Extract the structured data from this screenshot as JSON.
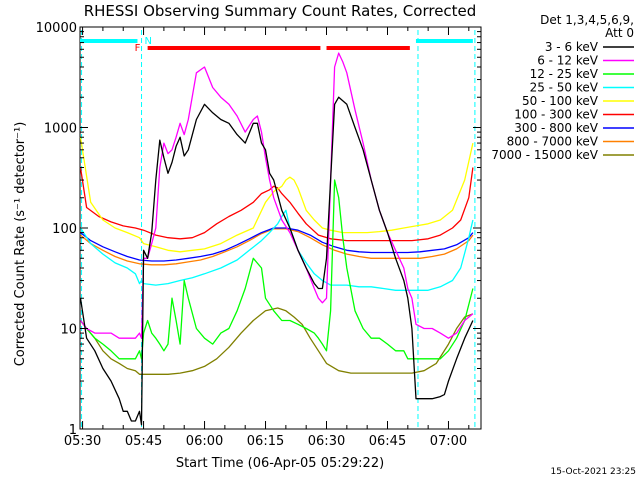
{
  "chart_data": {
    "type": "line",
    "title": "RHESSI Observing Summary Count Rates, Corrected",
    "xlabel": "Start Time (06-Apr-05 05:29:22)",
    "ylabel": "Corrected Count Rate (s⁻¹ detector⁻¹)",
    "y_scale": "log",
    "ylim": [
      1,
      10000
    ],
    "xlim": [
      "05:29:22",
      "07:08"
    ],
    "x_ticks": [
      "05:30",
      "05:45",
      "06:00",
      "06:15",
      "06:30",
      "06:45",
      "07:00"
    ],
    "y_ticks": [
      "1",
      "10",
      "100",
      "1000",
      "10000"
    ],
    "legend_header": [
      "Det 1,3,4,5,6,9,",
      "Att 0"
    ],
    "legend_position": "right",
    "footer_date": "15-Oct-2021 23:25",
    "flags": {
      "night_label": "N",
      "flare_label": "F",
      "night_color": "#00ffff",
      "flare_color": "#ff0000",
      "night_spans": [
        [
          "05:29:22",
          "05:43:30"
        ],
        [
          "06:52",
          "07:06"
        ]
      ],
      "flare_spans": [
        [
          "05:46",
          "06:28.5"
        ],
        [
          "06:30",
          "06:50.5"
        ]
      ],
      "night_boundaries": [
        "05:29:45",
        "05:44.5",
        "06:52.5",
        "07:06.5"
      ]
    },
    "series": [
      {
        "name": "3 - 6 keV",
        "color": "#000000",
        "x": [
          "05:29:30",
          "05:31",
          "05:33",
          "05:35",
          "05:37",
          "05:39",
          "05:40",
          "05:41",
          "05:42",
          "05:43",
          "05:44",
          "05:44.5",
          "05:45",
          "05:46",
          "05:47",
          "05:48",
          "05:49",
          "05:50",
          "05:51",
          "05:52",
          "05:53",
          "05:54",
          "05:55",
          "05:56",
          "05:58",
          "06:00",
          "06:02",
          "06:04",
          "06:06",
          "06:08",
          "06:10",
          "06:12",
          "06:13",
          "06:14",
          "06:15",
          "06:16",
          "06:17",
          "06:19",
          "06:21",
          "06:23",
          "06:25",
          "06:27",
          "06:28",
          "06:29",
          "06:30",
          "06:31",
          "06:32",
          "06:33",
          "06:35",
          "06:37",
          "06:39",
          "06:41",
          "06:43",
          "06:45",
          "06:47",
          "06:49",
          "06:50",
          "06:51",
          "06:52",
          "06:54",
          "06:56",
          "06:58",
          "06:59",
          "07:00",
          "07:02",
          "07:04",
          "07:06"
        ],
        "values": [
          20,
          8,
          6,
          4,
          3,
          2,
          1.5,
          1.5,
          1.2,
          1.2,
          1.5,
          1.1,
          60,
          50,
          90,
          300,
          750,
          500,
          350,
          450,
          650,
          800,
          520,
          600,
          1200,
          1700,
          1400,
          1200,
          1100,
          850,
          700,
          1100,
          1100,
          700,
          600,
          350,
          300,
          150,
          100,
          60,
          40,
          28,
          25,
          25,
          50,
          300,
          1700,
          2000,
          1700,
          1000,
          600,
          300,
          150,
          90,
          50,
          30,
          20,
          10,
          2,
          2,
          2,
          2.1,
          2.2,
          3,
          5,
          8,
          12
        ]
      },
      {
        "name": "6 - 12 keV",
        "color": "#ff00ff",
        "x": [
          "05:29:30",
          "05:31",
          "05:33",
          "05:35",
          "05:37",
          "05:39",
          "05:41",
          "05:43",
          "05:44",
          "05:44.5",
          "05:45",
          "05:46",
          "05:47",
          "05:48",
          "05:49",
          "05:50",
          "05:51",
          "05:52",
          "05:53",
          "05:54",
          "05:55",
          "05:56",
          "05:58",
          "06:00",
          "06:02",
          "06:04",
          "06:06",
          "06:08",
          "06:10",
          "06:12",
          "06:13",
          "06:14",
          "06:15",
          "06:16",
          "06:17",
          "06:19",
          "06:21",
          "06:23",
          "06:25",
          "06:27",
          "06:28",
          "06:29",
          "06:30",
          "06:31",
          "06:32",
          "06:33",
          "06:34",
          "06:35",
          "06:37",
          "06:39",
          "06:41",
          "06:43",
          "06:45",
          "06:47",
          "06:49",
          "06:50",
          "06:51",
          "06:52",
          "06:54",
          "06:56",
          "06:58",
          "07:00",
          "07:02",
          "07:04",
          "07:06"
        ],
        "values": [
          12,
          10,
          9,
          9,
          9,
          8,
          8,
          8,
          9,
          8,
          50,
          50,
          70,
          100,
          400,
          700,
          550,
          600,
          800,
          1100,
          850,
          1200,
          3500,
          4000,
          2500,
          2000,
          1700,
          1300,
          900,
          1200,
          1300,
          900,
          500,
          300,
          200,
          120,
          90,
          60,
          40,
          25,
          20,
          18,
          20,
          300,
          4000,
          5500,
          4500,
          3500,
          1500,
          700,
          300,
          150,
          90,
          60,
          40,
          25,
          20,
          11,
          10,
          10,
          9,
          8,
          9,
          12,
          14
        ]
      },
      {
        "name": "12 - 25 keV",
        "color": "#00ff00",
        "x": [
          "05:29:30",
          "05:31",
          "05:33",
          "05:35",
          "05:37",
          "05:39",
          "05:41",
          "05:43",
          "05:44",
          "05:44.5",
          "05:45",
          "05:46",
          "05:47",
          "05:48",
          "05:49",
          "05:50",
          "05:51",
          "05:52",
          "05:53",
          "05:54",
          "05:55",
          "05:56",
          "05:58",
          "06:00",
          "06:02",
          "06:04",
          "06:06",
          "06:08",
          "06:10",
          "06:12",
          "06:14",
          "06:15",
          "06:17",
          "06:19",
          "06:21",
          "06:23",
          "06:25",
          "06:27",
          "06:28",
          "06:29",
          "06:30",
          "06:31",
          "06:32",
          "06:33",
          "06:34",
          "06:35",
          "06:37",
          "06:39",
          "06:41",
          "06:43",
          "06:45",
          "06:47",
          "06:49",
          "06:50",
          "06:51",
          "06:52",
          "06:54",
          "06:56",
          "06:58",
          "07:00",
          "07:02",
          "07:04",
          "07:06"
        ],
        "values": [
          12,
          10,
          8,
          7,
          6,
          5,
          5,
          5,
          6,
          5,
          9,
          12,
          9,
          8,
          7,
          6,
          7,
          20,
          12,
          7,
          30,
          20,
          10,
          8,
          7,
          9,
          10,
          15,
          25,
          50,
          40,
          20,
          15,
          12,
          12,
          11,
          10,
          9,
          8,
          7,
          6,
          15,
          300,
          200,
          80,
          40,
          15,
          10,
          8,
          8,
          7,
          6,
          6,
          5,
          5,
          5,
          5,
          5,
          5,
          6,
          8,
          12,
          25
        ]
      },
      {
        "name": "25 - 50 keV",
        "color": "#00ffff",
        "x": [
          "05:29:30",
          "05:32",
          "05:35",
          "05:38",
          "05:41",
          "05:43",
          "05:44",
          "05:44.5",
          "05:45",
          "05:48",
          "05:51",
          "05:54",
          "05:57",
          "06:00",
          "06:04",
          "06:08",
          "06:11",
          "06:14",
          "06:16",
          "06:18",
          "06:19",
          "06:20",
          "06:21",
          "06:23",
          "06:25",
          "06:27",
          "06:29",
          "06:31",
          "06:33",
          "06:35",
          "06:38",
          "06:41",
          "06:44",
          "06:47",
          "06:50",
          "06:52",
          "06:55",
          "06:58",
          "07:01",
          "07:03",
          "07:05",
          "07:06"
        ],
        "values": [
          100,
          70,
          55,
          45,
          40,
          35,
          28,
          30,
          28,
          27,
          28,
          30,
          32,
          35,
          40,
          48,
          60,
          75,
          90,
          110,
          130,
          150,
          100,
          60,
          45,
          35,
          30,
          27,
          27,
          27,
          26,
          26,
          25,
          24,
          24,
          24,
          24,
          26,
          30,
          40,
          80,
          120
        ]
      },
      {
        "name": "50 - 100 keV",
        "color": "#ffff00",
        "x": [
          "05:29:30",
          "05:32",
          "05:35",
          "05:38",
          "05:41",
          "05:44",
          "05:45",
          "05:48",
          "05:51",
          "05:54",
          "05:57",
          "06:00",
          "06:04",
          "06:08",
          "06:12",
          "06:15",
          "06:17",
          "06:19",
          "06:20",
          "06:21",
          "06:22",
          "06:23",
          "06:25",
          "06:27",
          "06:29",
          "06:31",
          "06:34",
          "06:37",
          "06:40",
          "06:43",
          "06:46",
          "06:49",
          "06:52",
          "06:55",
          "06:58",
          "07:01",
          "07:04",
          "07:06"
        ],
        "values": [
          800,
          180,
          120,
          100,
          90,
          80,
          70,
          65,
          60,
          58,
          60,
          62,
          70,
          85,
          100,
          180,
          230,
          260,
          300,
          320,
          300,
          250,
          150,
          120,
          100,
          95,
          90,
          90,
          90,
          92,
          95,
          100,
          105,
          110,
          120,
          150,
          300,
          700
        ]
      },
      {
        "name": "100 - 300 keV",
        "color": "#ff0000",
        "x": [
          "05:29:30",
          "05:31",
          "05:34",
          "05:37",
          "05:40",
          "05:43",
          "05:45",
          "05:48",
          "05:51",
          "05:54",
          "05:57",
          "06:00",
          "06:03",
          "06:06",
          "06:09",
          "06:12",
          "06:14",
          "06:16",
          "06:17",
          "06:18",
          "06:19",
          "06:21",
          "06:23",
          "06:25",
          "06:28",
          "06:31",
          "06:35",
          "06:39",
          "06:43",
          "06:47",
          "06:51",
          "06:55",
          "06:58",
          "07:01",
          "07:03",
          "07:05",
          "07:06"
        ],
        "values": [
          400,
          160,
          130,
          115,
          105,
          100,
          95,
          85,
          80,
          78,
          80,
          90,
          110,
          130,
          150,
          180,
          220,
          240,
          260,
          250,
          220,
          180,
          140,
          110,
          85,
          78,
          75,
          75,
          75,
          75,
          75,
          78,
          85,
          100,
          120,
          200,
          400
        ]
      },
      {
        "name": "300 - 800 keV",
        "color": "#0000ff",
        "x": [
          "05:29:30",
          "05:32",
          "05:35",
          "05:38",
          "05:41",
          "05:44",
          "05:47",
          "05:50",
          "05:53",
          "05:56",
          "05:59",
          "06:02",
          "06:05",
          "06:08",
          "06:11",
          "06:14",
          "06:17",
          "06:20",
          "06:23",
          "06:26",
          "06:29",
          "06:32",
          "06:35",
          "06:38",
          "06:41",
          "06:44",
          "06:47",
          "06:50",
          "06:53",
          "06:56",
          "06:59",
          "07:02",
          "07:05",
          "07:06"
        ],
        "values": [
          90,
          75,
          65,
          58,
          52,
          48,
          47,
          47,
          48,
          50,
          52,
          55,
          60,
          68,
          78,
          90,
          100,
          100,
          95,
          85,
          72,
          65,
          60,
          58,
          57,
          57,
          57,
          57,
          58,
          60,
          62,
          68,
          80,
          90
        ]
      },
      {
        "name": "800 - 7000 keV",
        "color": "#ff8000",
        "x": [
          "05:29:30",
          "05:32",
          "05:35",
          "05:38",
          "05:41",
          "05:44",
          "05:47",
          "05:50",
          "05:53",
          "05:56",
          "05:59",
          "06:02",
          "06:05",
          "06:08",
          "06:11",
          "06:14",
          "06:17",
          "06:20",
          "06:23",
          "06:26",
          "06:29",
          "06:32",
          "06:35",
          "06:38",
          "06:41",
          "06:44",
          "06:47",
          "06:50",
          "06:53",
          "06:56",
          "06:59",
          "07:02",
          "07:05",
          "07:06"
        ],
        "values": [
          85,
          70,
          60,
          52,
          47,
          44,
          43,
          43,
          44,
          46,
          48,
          52,
          58,
          65,
          75,
          88,
          98,
          98,
          92,
          80,
          68,
          60,
          55,
          52,
          50,
          50,
          50,
          50,
          50,
          52,
          55,
          62,
          75,
          85
        ]
      },
      {
        "name": "7000 - 15000 keV",
        "color": "#808000",
        "x": [
          "05:29:30",
          "05:31",
          "05:33",
          "05:35",
          "05:37",
          "05:39",
          "05:41",
          "05:43",
          "05:44",
          "05:45",
          "05:48",
          "05:51",
          "05:54",
          "05:57",
          "06:00",
          "06:03",
          "06:06",
          "06:09",
          "06:12",
          "06:15",
          "06:18",
          "06:20",
          "06:22",
          "06:24",
          "06:26",
          "06:28",
          "06:30",
          "06:33",
          "06:36",
          "06:39",
          "06:42",
          "06:45",
          "06:48",
          "06:51",
          "06:54",
          "06:57",
          "07:00",
          "07:02",
          "07:04",
          "07:06"
        ],
        "values": [
          12,
          10,
          8,
          6,
          5,
          4.5,
          4,
          3.8,
          3.5,
          3.5,
          3.5,
          3.5,
          3.6,
          3.8,
          4.2,
          5,
          6.5,
          9,
          12,
          15,
          16,
          15,
          13,
          11,
          8,
          6,
          4.5,
          3.8,
          3.6,
          3.6,
          3.6,
          3.6,
          3.6,
          3.6,
          3.8,
          4.5,
          7,
          10,
          13,
          14
        ]
      }
    ]
  }
}
